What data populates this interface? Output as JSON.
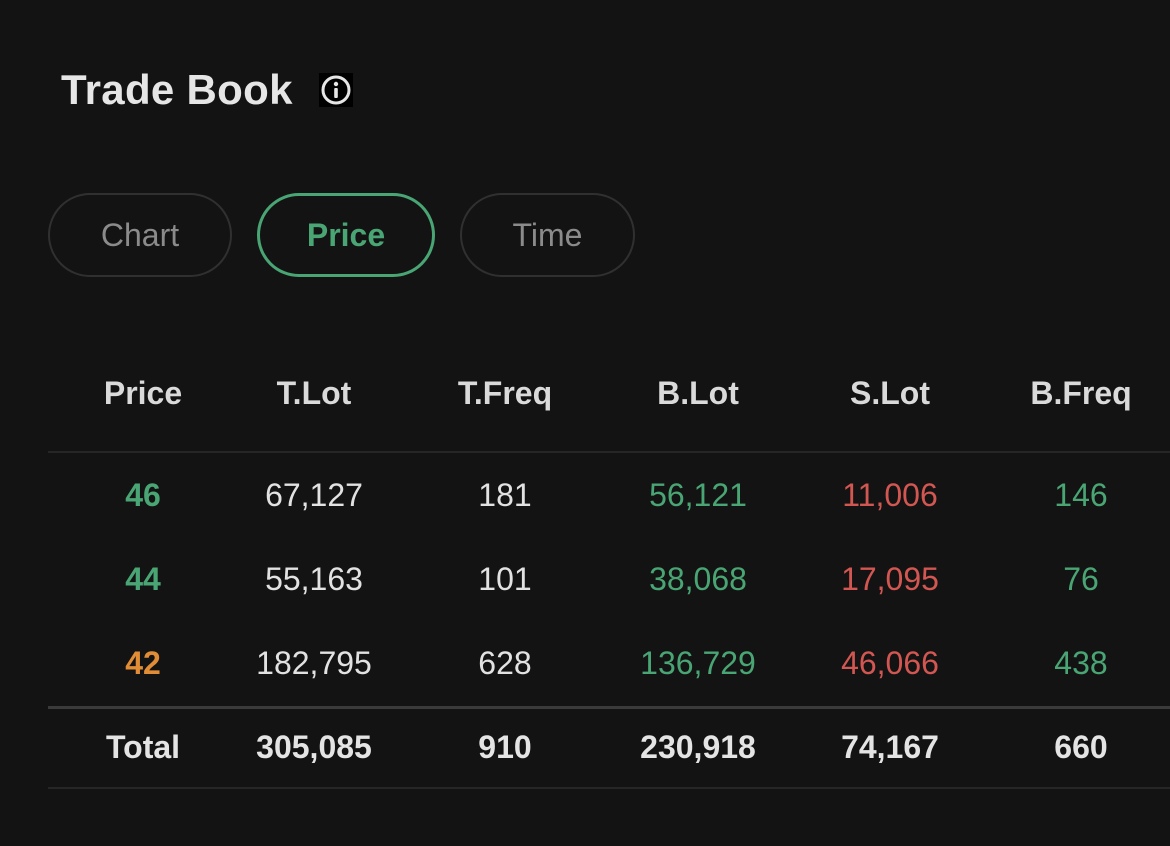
{
  "header": {
    "title": "Trade Book",
    "info_icon": "info-icon"
  },
  "tabs": [
    {
      "label": "Chart",
      "active": false
    },
    {
      "label": "Price",
      "active": true
    },
    {
      "label": "Time",
      "active": false
    }
  ],
  "table": {
    "columns": [
      "Price",
      "T.Lot",
      "T.Freq",
      "B.Lot",
      "S.Lot",
      "B.Freq"
    ],
    "rows": [
      {
        "price": "46",
        "price_color": "#4aa574",
        "t_lot": "67,127",
        "t_freq": "181",
        "b_lot": "56,121",
        "s_lot": "11,006",
        "b_freq": "146"
      },
      {
        "price": "44",
        "price_color": "#4aa574",
        "t_lot": "55,163",
        "t_freq": "101",
        "b_lot": "38,068",
        "s_lot": "17,095",
        "b_freq": "76"
      },
      {
        "price": "42",
        "price_color": "#e08d35",
        "t_lot": "182,795",
        "t_freq": "628",
        "b_lot": "136,729",
        "s_lot": "46,066",
        "b_freq": "438"
      }
    ],
    "total": {
      "label": "Total",
      "t_lot": "305,085",
      "t_freq": "910",
      "b_lot": "230,918",
      "s_lot": "74,167",
      "b_freq": "660"
    }
  },
  "colors": {
    "buy": "#4aa574",
    "sell": "#d25651",
    "accent": "#4aa574",
    "orange": "#e08d35",
    "background": "#131313"
  }
}
